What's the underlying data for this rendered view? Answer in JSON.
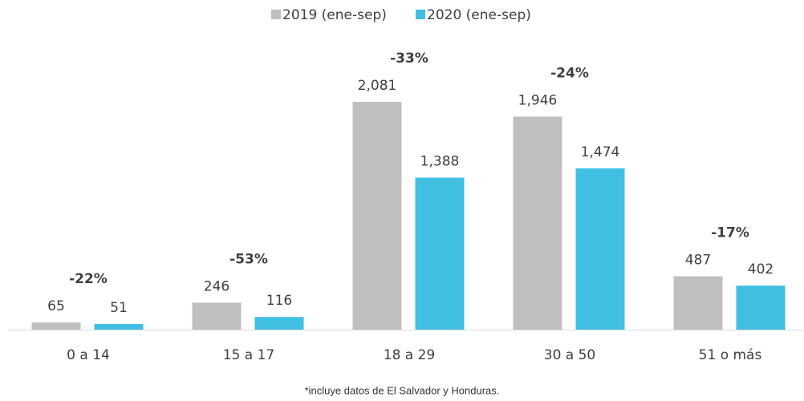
{
  "chart_data": {
    "type": "bar",
    "categories": [
      "0 a 14",
      "15 a 17",
      "18 a 29",
      "30 a 50",
      "51 o más"
    ],
    "series": [
      {
        "name": "2019 (ene-sep)",
        "color": "#bfbfbf",
        "values": [
          65,
          246,
          2081,
          1946,
          487
        ],
        "value_labels": [
          "65",
          "246",
          "2,081",
          "1,946",
          "487"
        ]
      },
      {
        "name": "2020 (ene-sep)",
        "color": "#41bfe2",
        "values": [
          51,
          116,
          1388,
          1474,
          402
        ],
        "value_labels": [
          "51",
          "116",
          "1,388",
          "1,474",
          "402"
        ]
      }
    ],
    "annotations": [
      "-22%",
      "-53%",
      "-33%",
      "-24%",
      "-17%"
    ],
    "footnote": "*incluye datos de El Salvador y Honduras.",
    "legend": "top"
  }
}
